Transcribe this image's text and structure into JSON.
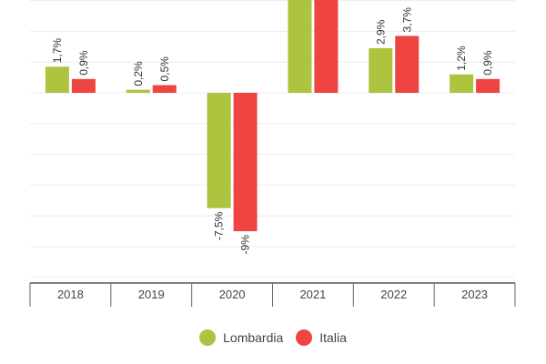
{
  "chart_data": {
    "type": "bar",
    "categories": [
      "2018",
      "2019",
      "2020",
      "2021",
      "2022",
      "2023"
    ],
    "series": [
      {
        "name": "Lombardia",
        "color": "#adc43f",
        "values": [
          1.7,
          0.2,
          -7.5,
          null,
          2.9,
          1.2
        ],
        "labels": [
          "1,7%",
          "0,2%",
          "-7,5%",
          "",
          "2,9%",
          "1,2%"
        ]
      },
      {
        "name": "Italia",
        "color": "#ef4541",
        "values": [
          0.9,
          0.5,
          -9,
          null,
          3.7,
          0.9
        ],
        "labels": [
          "0,9%",
          "0,5%",
          "-9%",
          "",
          "3,7%",
          "0,9%"
        ]
      }
    ],
    "note_2021": "2021 bars extend beyond the visible top of the chart; values not visible",
    "ylim": [
      -12,
      6
    ],
    "grid": true,
    "legend_position": "bottom"
  }
}
